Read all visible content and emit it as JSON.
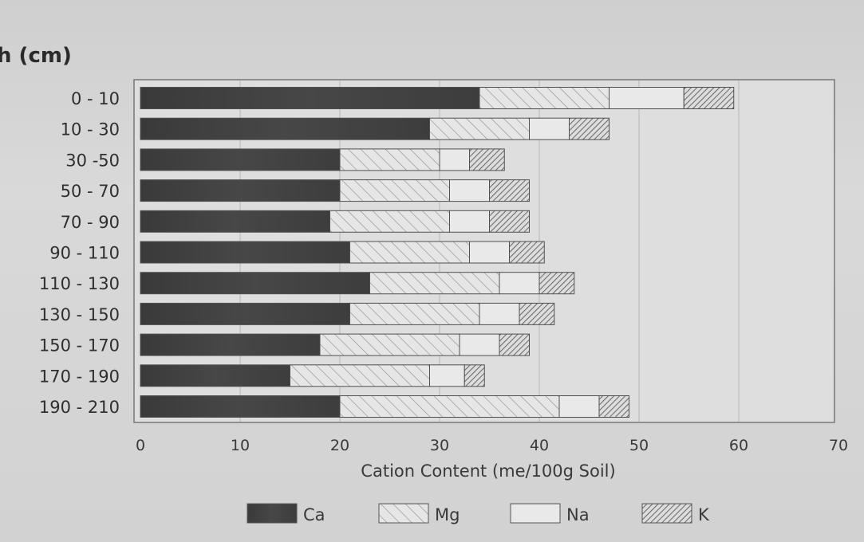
{
  "chart_data": {
    "type": "bar",
    "orientation": "horizontal",
    "stacked": true,
    "ylabel": "h (cm)",
    "xlabel": "Cation Content (me/100g Soil)",
    "xlim": [
      0,
      70
    ],
    "xticks": [
      0,
      10,
      20,
      30,
      40,
      50,
      60,
      70
    ],
    "grid": "vertical",
    "legend_position": "bottom",
    "categories": [
      "0 - 10",
      "10 - 30",
      "30 -50",
      "50 - 70",
      "70 - 90",
      "90 - 110",
      "110 - 130",
      "130 - 150",
      "150 - 170",
      "170 - 190",
      "190 - 210"
    ],
    "series": [
      {
        "name": "Ca",
        "pattern": "solid-dark",
        "values": [
          34,
          29,
          20,
          20,
          19,
          21,
          23,
          21,
          18,
          15,
          20
        ]
      },
      {
        "name": "Mg",
        "pattern": "diagonal-light",
        "values": [
          13,
          10,
          10,
          11,
          12,
          12,
          13,
          13,
          14,
          14,
          22
        ]
      },
      {
        "name": "Na",
        "pattern": "blank",
        "values": [
          7.5,
          4,
          3,
          4,
          4,
          4,
          4,
          4,
          4,
          3.5,
          4
        ]
      },
      {
        "name": "K",
        "pattern": "diagonal-dense",
        "values": [
          5,
          4,
          3.5,
          4,
          4,
          3.5,
          3.5,
          3.5,
          3,
          2,
          3
        ]
      }
    ]
  },
  "colors": {
    "plot_background": "#e0e0e0",
    "ca_fill": "#3c3c3c",
    "stroke": "#555555"
  }
}
